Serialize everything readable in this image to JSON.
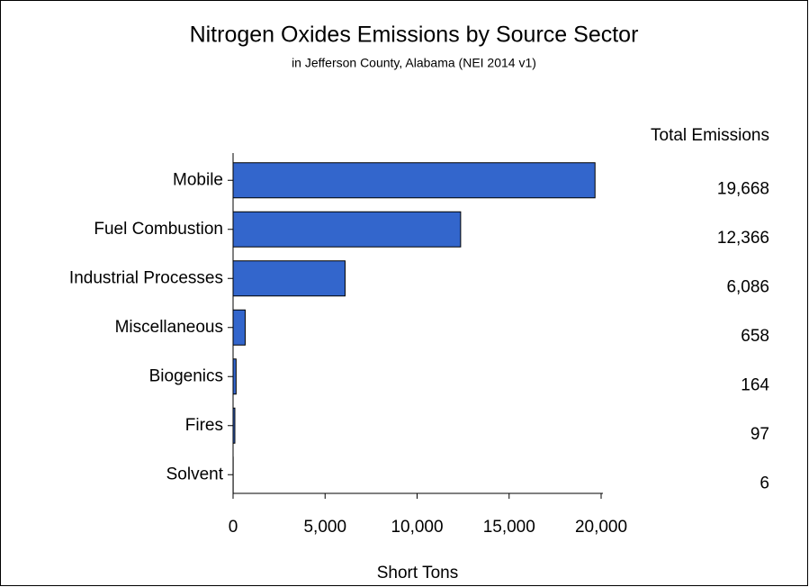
{
  "chart_data": {
    "type": "bar",
    "orientation": "horizontal",
    "title": "Nitrogen Oxides Emissions by Source Sector",
    "subtitle": "in Jefferson County, Alabama (NEI 2014 v1)",
    "value_column_title": "Total Emissions",
    "x_label": "Short Tons",
    "categories": [
      "Mobile",
      "Fuel Combustion",
      "Industrial Processes",
      "Miscellaneous",
      "Biogenics",
      "Fires",
      "Solvent"
    ],
    "values": [
      19668,
      12366,
      6086,
      658,
      164,
      97,
      6
    ],
    "value_labels": [
      "19,668",
      "12,366",
      "6,086",
      "658",
      "164",
      "97",
      "6"
    ],
    "color": "#3366cc",
    "xlim": [
      0,
      20000
    ],
    "xticks": [
      0,
      {
        "value": 5000,
        "label": "5,000"
      },
      {
        "value": 10000,
        "label": "10,000"
      },
      {
        "value": 15000,
        "label": "15,000"
      },
      {
        "value": 20000,
        "label": "20,000"
      }
    ],
    "grid": false
  }
}
